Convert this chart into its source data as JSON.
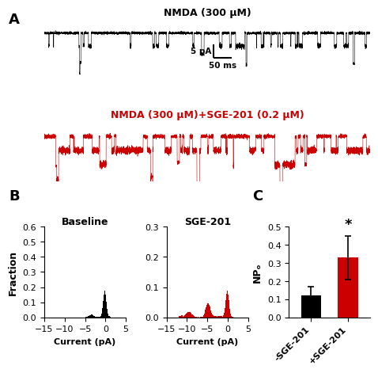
{
  "panel_A_title1": "NMDA (300 μM)",
  "panel_A_title2": "NMDA (300 μM)+SGE-201 (0.2 μM)",
  "scalebar_vertical": "5 pA",
  "scalebar_horizontal": "50 ms",
  "baseline_hist_title": "Baseline",
  "sge_hist_title": "SGE-201",
  "hist_xlabel": "Current (pA)",
  "hist_ylabel": "Fraction",
  "bar_ylabel": "NPₒ",
  "bar_xlabels": [
    "-SGE-201",
    "+SGE-201"
  ],
  "bar_values": [
    0.12,
    0.33
  ],
  "bar_errors": [
    0.05,
    0.12
  ],
  "bar_colors": [
    "#000000",
    "#cc0000"
  ],
  "bar_ylim": [
    0,
    0.5
  ],
  "bar_yticks": [
    0.0,
    0.1,
    0.2,
    0.3,
    0.4,
    0.5
  ],
  "hist_xlim": [
    -15,
    5
  ],
  "hist_xticks": [
    -15,
    -10,
    -5,
    0,
    5
  ],
  "baseline_ylim": [
    0,
    0.6
  ],
  "baseline_yticks": [
    0.0,
    0.1,
    0.2,
    0.3,
    0.4,
    0.5,
    0.6
  ],
  "sge_ylim": [
    0,
    0.3
  ],
  "sge_yticks": [
    0.0,
    0.1,
    0.2,
    0.3
  ],
  "seed": 42,
  "black_color": "#000000",
  "red_color": "#cc0000",
  "label_fontsize": 9,
  "tick_fontsize": 8,
  "title_fontsize": 9
}
